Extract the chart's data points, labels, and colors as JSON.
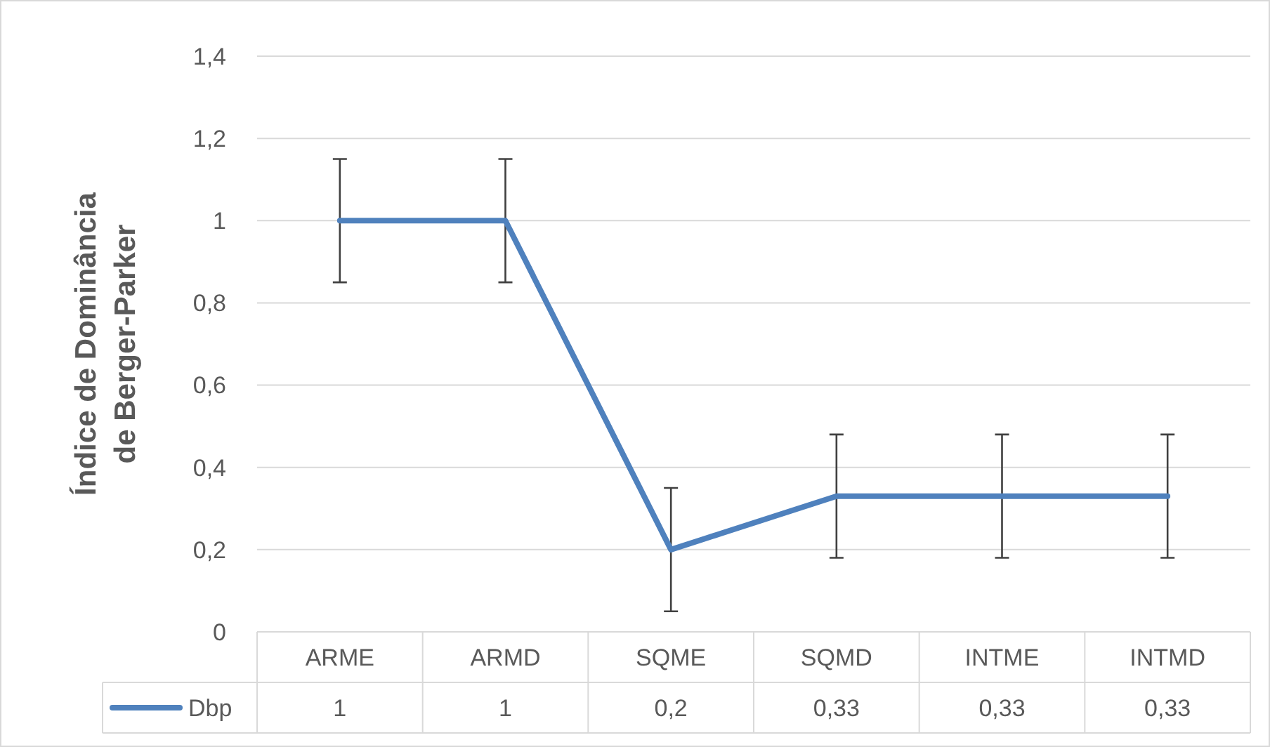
{
  "chart_data": {
    "type": "line",
    "ylabel": "Índice de Dominância de Berger-Parker",
    "categories": [
      "ARME",
      "ARMD",
      "SQME",
      "SQMD",
      "INTME",
      "INTMD"
    ],
    "series": [
      {
        "name": "Dbp",
        "color": "#4f81bd",
        "values": [
          1,
          1,
          0.2,
          0.33,
          0.33,
          0.33
        ],
        "errors": [
          0.15,
          0.15,
          0.15,
          0.15,
          0.15,
          0.15
        ],
        "value_labels": [
          "1",
          "1",
          "0,2",
          "0,33",
          "0,33",
          "0,33"
        ]
      }
    ],
    "ylim": [
      0,
      1.4
    ],
    "yticks": [
      0,
      {
        "value": 0.2,
        "label": "0,2"
      },
      {
        "value": 0.4,
        "label": "0,4"
      },
      {
        "value": 0.6,
        "label": "0,6"
      },
      {
        "value": 0.8,
        "label": "0,8"
      },
      1,
      {
        "value": 1.2,
        "label": "1,2"
      },
      {
        "value": 1.4,
        "label": "1,4"
      }
    ],
    "grid": "y",
    "legend": "bottom",
    "marker": "none",
    "line_style": "solid"
  }
}
